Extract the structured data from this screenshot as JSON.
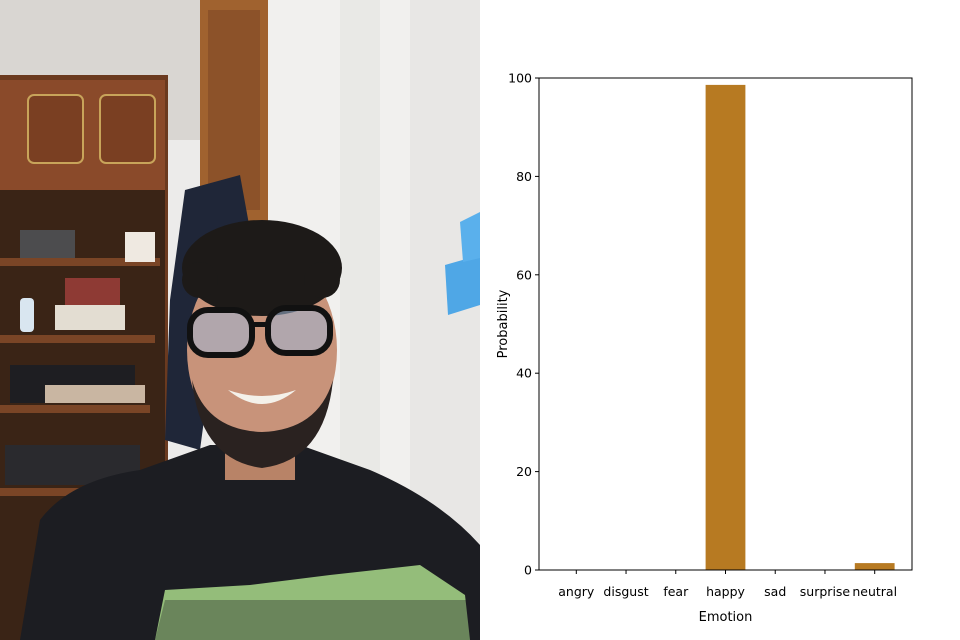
{
  "photo": {
    "subject": "smiling man with glasses and beard in a room",
    "colors": {
      "ceiling": "#d9d6d2",
      "wall": "#ecebea",
      "wood": "#8a4a2a",
      "shirt": "#1c1d22",
      "sticky_note": "#4fa7e6",
      "print": "#a9d98a"
    }
  },
  "chart_data": {
    "type": "bar",
    "categories": [
      "angry",
      "disgust",
      "fear",
      "happy",
      "sad",
      "surprise",
      "neutral"
    ],
    "values": [
      0,
      0,
      0,
      98.6,
      0,
      0,
      1.4
    ],
    "xlabel": "Emotion",
    "ylabel": "Probability",
    "ylim": [
      0,
      100
    ],
    "yticks": [
      0,
      20,
      40,
      60,
      80,
      100
    ],
    "bar_color": "#b77a22",
    "grid": false,
    "legend": "none"
  }
}
